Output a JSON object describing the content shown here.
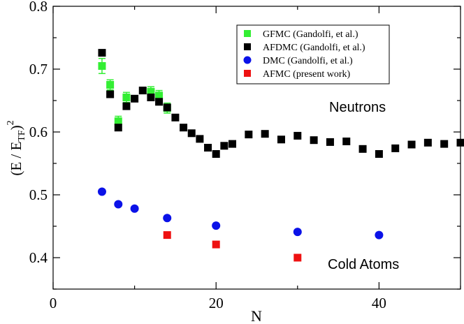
{
  "chart_data": {
    "type": "scatter",
    "title": "",
    "xlabel": "N",
    "ylabel": "(E / E_TF)^2",
    "ylabel_parts": {
      "open": "(E / E",
      "sub": "TF",
      "close": ")",
      "sup": "2"
    },
    "xlim": [
      0,
      50
    ],
    "ylim": [
      0.35,
      0.8
    ],
    "x_ticks": [
      0,
      20,
      40
    ],
    "x_tick_labels": [
      "0",
      "20",
      "40"
    ],
    "y_ticks": [
      0.4,
      0.5,
      0.6,
      0.7,
      0.8
    ],
    "y_tick_labels": [
      "0.4",
      "0.5",
      "0.6",
      "0.7",
      "0.8"
    ],
    "legend_position": "top-right",
    "annotations": [
      {
        "id": "neutrons",
        "text": "Neutrons"
      },
      {
        "id": "cold-atoms",
        "text": "Cold Atoms"
      }
    ],
    "series": [
      {
        "name": "GFMC (Gandolfi, et al.)",
        "color": "#33ee33",
        "marker": "square",
        "x": [
          6,
          7,
          8,
          9,
          12,
          13,
          14
        ],
        "y": [
          0.705,
          0.675,
          0.617,
          0.655,
          0.664,
          0.658,
          0.638
        ],
        "err": [
          0.012,
          0.008,
          0.008,
          0.008,
          0.008,
          0.008,
          0.008
        ]
      },
      {
        "name": "AFDMC (Gandolfi, et al.)",
        "color": "#000000",
        "marker": "square",
        "x": [
          6,
          7,
          8,
          9,
          10,
          11,
          12,
          13,
          14,
          15,
          16,
          17,
          18,
          19,
          20,
          21,
          22,
          24,
          26,
          28,
          30,
          32,
          34,
          36,
          38,
          40,
          42,
          44,
          46,
          48,
          50
        ],
        "y": [
          0.726,
          0.66,
          0.607,
          0.641,
          0.653,
          0.666,
          0.655,
          0.648,
          0.639,
          0.623,
          0.607,
          0.598,
          0.589,
          0.575,
          0.565,
          0.578,
          0.581,
          0.596,
          0.597,
          0.588,
          0.594,
          0.587,
          0.584,
          0.585,
          0.573,
          0.565,
          0.574,
          0.58,
          0.583,
          0.581,
          0.583
        ],
        "err": []
      },
      {
        "name": "DMC (Gandolfi, et al.)",
        "color": "#0b12e8",
        "marker": "circle",
        "x": [
          6,
          8,
          10,
          14,
          20,
          30,
          40
        ],
        "y": [
          0.505,
          0.485,
          0.478,
          0.463,
          0.451,
          0.441,
          0.436
        ],
        "err": []
      },
      {
        "name": "AFMC (present work)",
        "color": "#ee1111",
        "marker": "square",
        "x": [
          14,
          20,
          30
        ],
        "y": [
          0.436,
          0.421,
          0.4
        ],
        "err": []
      }
    ]
  }
}
